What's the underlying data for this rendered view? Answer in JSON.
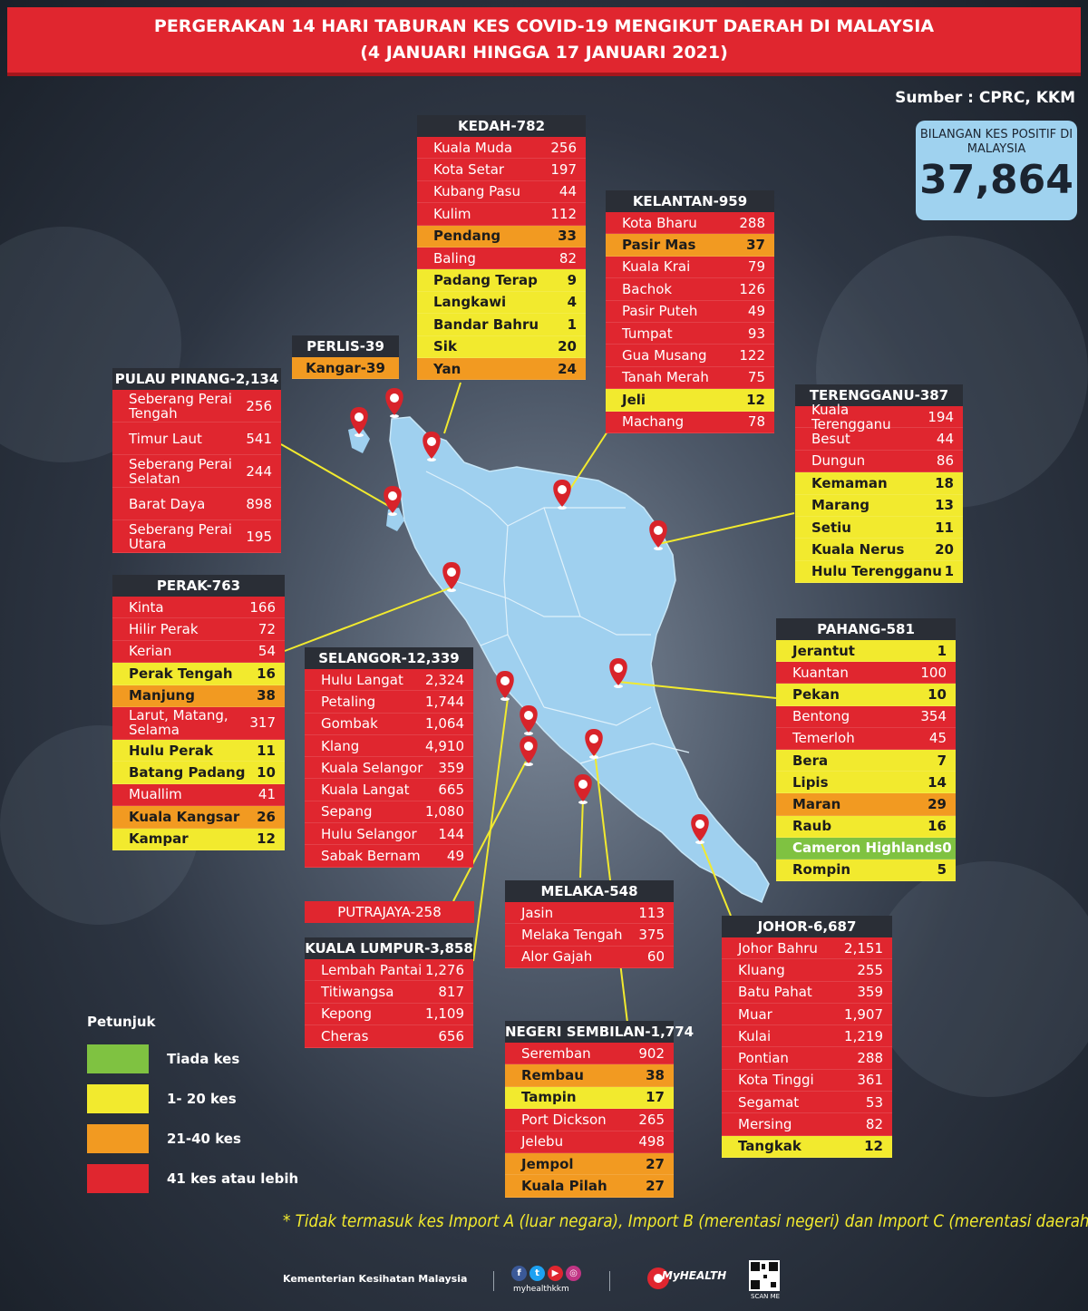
{
  "title": {
    "line1": "PERGERAKAN 14 HARI TABURAN KES COVID-19 MENGIKUT DAERAH DI MALAYSIA",
    "line2": "(4 JANUARI HINGGA 17 JANUARI 2021)"
  },
  "source": "Sumber : CPRC, KKM",
  "total": {
    "label": "BILANGAN KES POSITIF DI MALAYSIA",
    "value": "37,864"
  },
  "colors": {
    "red": "#e0262f",
    "yellow": "#f2ea2e",
    "orange": "#f29a21",
    "green": "#7fc241",
    "map": "#9fd0ef",
    "pin": "#d8232a"
  },
  "states": [
    {
      "key": "kedah",
      "header": "KEDAH-782",
      "rows": [
        {
          "name": "Kuala Muda",
          "value": "256",
          "level": "r"
        },
        {
          "name": "Kota Setar",
          "value": "197",
          "level": "r"
        },
        {
          "name": "Kubang Pasu",
          "value": "44",
          "level": "r"
        },
        {
          "name": "Kulim",
          "value": "112",
          "level": "r"
        },
        {
          "name": "Pendang",
          "value": "33",
          "level": "o"
        },
        {
          "name": "Baling",
          "value": "82",
          "level": "r"
        },
        {
          "name": "Padang Terap",
          "value": "9",
          "level": "y"
        },
        {
          "name": "Langkawi",
          "value": "4",
          "level": "y"
        },
        {
          "name": "Bandar Bahru",
          "value": "1",
          "level": "y"
        },
        {
          "name": "Sik",
          "value": "20",
          "level": "y"
        },
        {
          "name": "Yan",
          "value": "24",
          "level": "o"
        }
      ]
    },
    {
      "key": "kelantan",
      "header": "KELANTAN-959",
      "rows": [
        {
          "name": "Kota Bharu",
          "value": "288",
          "level": "r"
        },
        {
          "name": "Pasir Mas",
          "value": "37",
          "level": "o"
        },
        {
          "name": "Kuala Krai",
          "value": "79",
          "level": "r"
        },
        {
          "name": "Bachok",
          "value": "126",
          "level": "r"
        },
        {
          "name": "Pasir Puteh",
          "value": "49",
          "level": "r"
        },
        {
          "name": "Tumpat",
          "value": "93",
          "level": "r"
        },
        {
          "name": "Gua Musang",
          "value": "122",
          "level": "r"
        },
        {
          "name": "Tanah Merah",
          "value": "75",
          "level": "r"
        },
        {
          "name": "Jeli",
          "value": "12",
          "level": "y"
        },
        {
          "name": "Machang",
          "value": "78",
          "level": "r"
        }
      ]
    },
    {
      "key": "perlis",
      "header": "PERLIS-39",
      "rows": [
        {
          "name": "Kangar-39",
          "value": "",
          "level": "o"
        }
      ]
    },
    {
      "key": "pulau_pinang",
      "header": "PULAU PINANG-2,134",
      "rows": [
        {
          "name": "Seberang Perai Tengah",
          "value": "256",
          "level": "r"
        },
        {
          "name": "Timur Laut",
          "value": "541",
          "level": "r"
        },
        {
          "name": "Seberang Perai Selatan",
          "value": "244",
          "level": "r"
        },
        {
          "name": "Barat Daya",
          "value": "898",
          "level": "r"
        },
        {
          "name": "Seberang Perai Utara",
          "value": "195",
          "level": "r"
        }
      ]
    },
    {
      "key": "terengganu",
      "header": "TERENGGANU-387",
      "rows": [
        {
          "name": "Kuala Terengganu",
          "value": "194",
          "level": "r"
        },
        {
          "name": "Besut",
          "value": "44",
          "level": "r"
        },
        {
          "name": "Dungun",
          "value": "86",
          "level": "r"
        },
        {
          "name": "Kemaman",
          "value": "18",
          "level": "y"
        },
        {
          "name": "Marang",
          "value": "13",
          "level": "y"
        },
        {
          "name": "Setiu",
          "value": "11",
          "level": "y"
        },
        {
          "name": "Kuala Nerus",
          "value": "20",
          "level": "y"
        },
        {
          "name": "Hulu Terengganu",
          "value": "1",
          "level": "y"
        }
      ]
    },
    {
      "key": "perak",
      "header": "PERAK-763",
      "rows": [
        {
          "name": "Kinta",
          "value": "166",
          "level": "r"
        },
        {
          "name": "Hilir Perak",
          "value": "72",
          "level": "r"
        },
        {
          "name": "Kerian",
          "value": "54",
          "level": "r"
        },
        {
          "name": "Perak Tengah",
          "value": "16",
          "level": "y"
        },
        {
          "name": "Manjung",
          "value": "38",
          "level": "o"
        },
        {
          "name": "Larut, Matang, Selama",
          "value": "317",
          "level": "r"
        },
        {
          "name": "Hulu Perak",
          "value": "11",
          "level": "y"
        },
        {
          "name": "Batang Padang",
          "value": "10",
          "level": "y"
        },
        {
          "name": "Muallim",
          "value": "41",
          "level": "r"
        },
        {
          "name": "Kuala Kangsar",
          "value": "26",
          "level": "o"
        },
        {
          "name": "Kampar",
          "value": "12",
          "level": "y"
        }
      ]
    },
    {
      "key": "selangor",
      "header": "SELANGOR-12,339",
      "rows": [
        {
          "name": "Hulu Langat",
          "value": "2,324",
          "level": "r"
        },
        {
          "name": "Petaling",
          "value": "1,744",
          "level": "r"
        },
        {
          "name": "Gombak",
          "value": "1,064",
          "level": "r"
        },
        {
          "name": "Klang",
          "value": "4,910",
          "level": "r"
        },
        {
          "name": "Kuala Selangor",
          "value": "359",
          "level": "r"
        },
        {
          "name": "Kuala Langat",
          "value": "665",
          "level": "r"
        },
        {
          "name": "Sepang",
          "value": "1,080",
          "level": "r"
        },
        {
          "name": "Hulu Selangor",
          "value": "144",
          "level": "r"
        },
        {
          "name": "Sabak Bernam",
          "value": "49",
          "level": "r"
        }
      ]
    },
    {
      "key": "pahang",
      "header": "PAHANG-581",
      "rows": [
        {
          "name": "Jerantut",
          "value": "1",
          "level": "y"
        },
        {
          "name": "Kuantan",
          "value": "100",
          "level": "r"
        },
        {
          "name": "Pekan",
          "value": "10",
          "level": "y"
        },
        {
          "name": "Bentong",
          "value": "354",
          "level": "r"
        },
        {
          "name": "Temerloh",
          "value": "45",
          "level": "r"
        },
        {
          "name": "Bera",
          "value": "7",
          "level": "y"
        },
        {
          "name": "Lipis",
          "value": "14",
          "level": "y"
        },
        {
          "name": "Maran",
          "value": "29",
          "level": "o"
        },
        {
          "name": "Raub",
          "value": "16",
          "level": "y"
        },
        {
          "name": "Cameron Highlands",
          "value": "0",
          "level": "g"
        },
        {
          "name": "Rompin",
          "value": "5",
          "level": "y"
        }
      ]
    },
    {
      "key": "melaka",
      "header": "MELAKA-548",
      "rows": [
        {
          "name": "Jasin",
          "value": "113",
          "level": "r"
        },
        {
          "name": "Melaka Tengah",
          "value": "375",
          "level": "r"
        },
        {
          "name": "Alor Gajah",
          "value": "60",
          "level": "r"
        }
      ]
    },
    {
      "key": "johor",
      "header": "JOHOR-6,687",
      "rows": [
        {
          "name": "Johor Bahru",
          "value": "2,151",
          "level": "r"
        },
        {
          "name": "Kluang",
          "value": "255",
          "level": "r"
        },
        {
          "name": "Batu Pahat",
          "value": "359",
          "level": "r"
        },
        {
          "name": "Muar",
          "value": "1,907",
          "level": "r"
        },
        {
          "name": "Kulai",
          "value": "1,219",
          "level": "r"
        },
        {
          "name": "Pontian",
          "value": "288",
          "level": "r"
        },
        {
          "name": "Kota Tinggi",
          "value": "361",
          "level": "r"
        },
        {
          "name": "Segamat",
          "value": "53",
          "level": "r"
        },
        {
          "name": "Mersing",
          "value": "82",
          "level": "r"
        },
        {
          "name": "Tangkak",
          "value": "12",
          "level": "y"
        }
      ]
    },
    {
      "key": "kuala_lumpur",
      "header": "KUALA LUMPUR-3,858",
      "rows": [
        {
          "name": "Lembah Pantai",
          "value": "1,276",
          "level": "r"
        },
        {
          "name": "Titiwangsa",
          "value": "817",
          "level": "r"
        },
        {
          "name": "Kepong",
          "value": "1,109",
          "level": "r"
        },
        {
          "name": "Cheras",
          "value": "656",
          "level": "r"
        }
      ]
    },
    {
      "key": "negeri_sembilan",
      "header": "NEGERI SEMBILAN-1,774",
      "rows": [
        {
          "name": "Seremban",
          "value": "902",
          "level": "r"
        },
        {
          "name": "Rembau",
          "value": "38",
          "level": "o"
        },
        {
          "name": "Tampin",
          "value": "17",
          "level": "y"
        },
        {
          "name": "Port Dickson",
          "value": "265",
          "level": "r"
        },
        {
          "name": "Jelebu",
          "value": "498",
          "level": "r"
        },
        {
          "name": "Jempol",
          "value": "27",
          "level": "o"
        },
        {
          "name": "Kuala Pilah",
          "value": "27",
          "level": "o"
        }
      ]
    }
  ],
  "putrajaya": "PUTRAJAYA-258",
  "legend": {
    "title": "Petunjuk",
    "items": [
      {
        "label": "Tiada kes",
        "color": "#7fc241"
      },
      {
        "label": "1- 20 kes",
        "color": "#f2ea2e"
      },
      {
        "label": "21-40 kes",
        "color": "#f29a21"
      },
      {
        "label": "41 kes atau lebih",
        "color": "#e0262f"
      }
    ]
  },
  "note": "* Tidak termasuk kes Import A (luar negara),  Import B (merentasi negeri) dan Import C (merentasi daerah)",
  "footer": {
    "ministry": "Kementerian Kesihatan Malaysia",
    "social_icons": [
      "facebook-icon",
      "twitter-icon",
      "youtube-icon",
      "instagram-icon"
    ],
    "handle": "myhealthkkm",
    "logo_text": "MyHEALTH",
    "qr_caption": "SCAN ME"
  }
}
